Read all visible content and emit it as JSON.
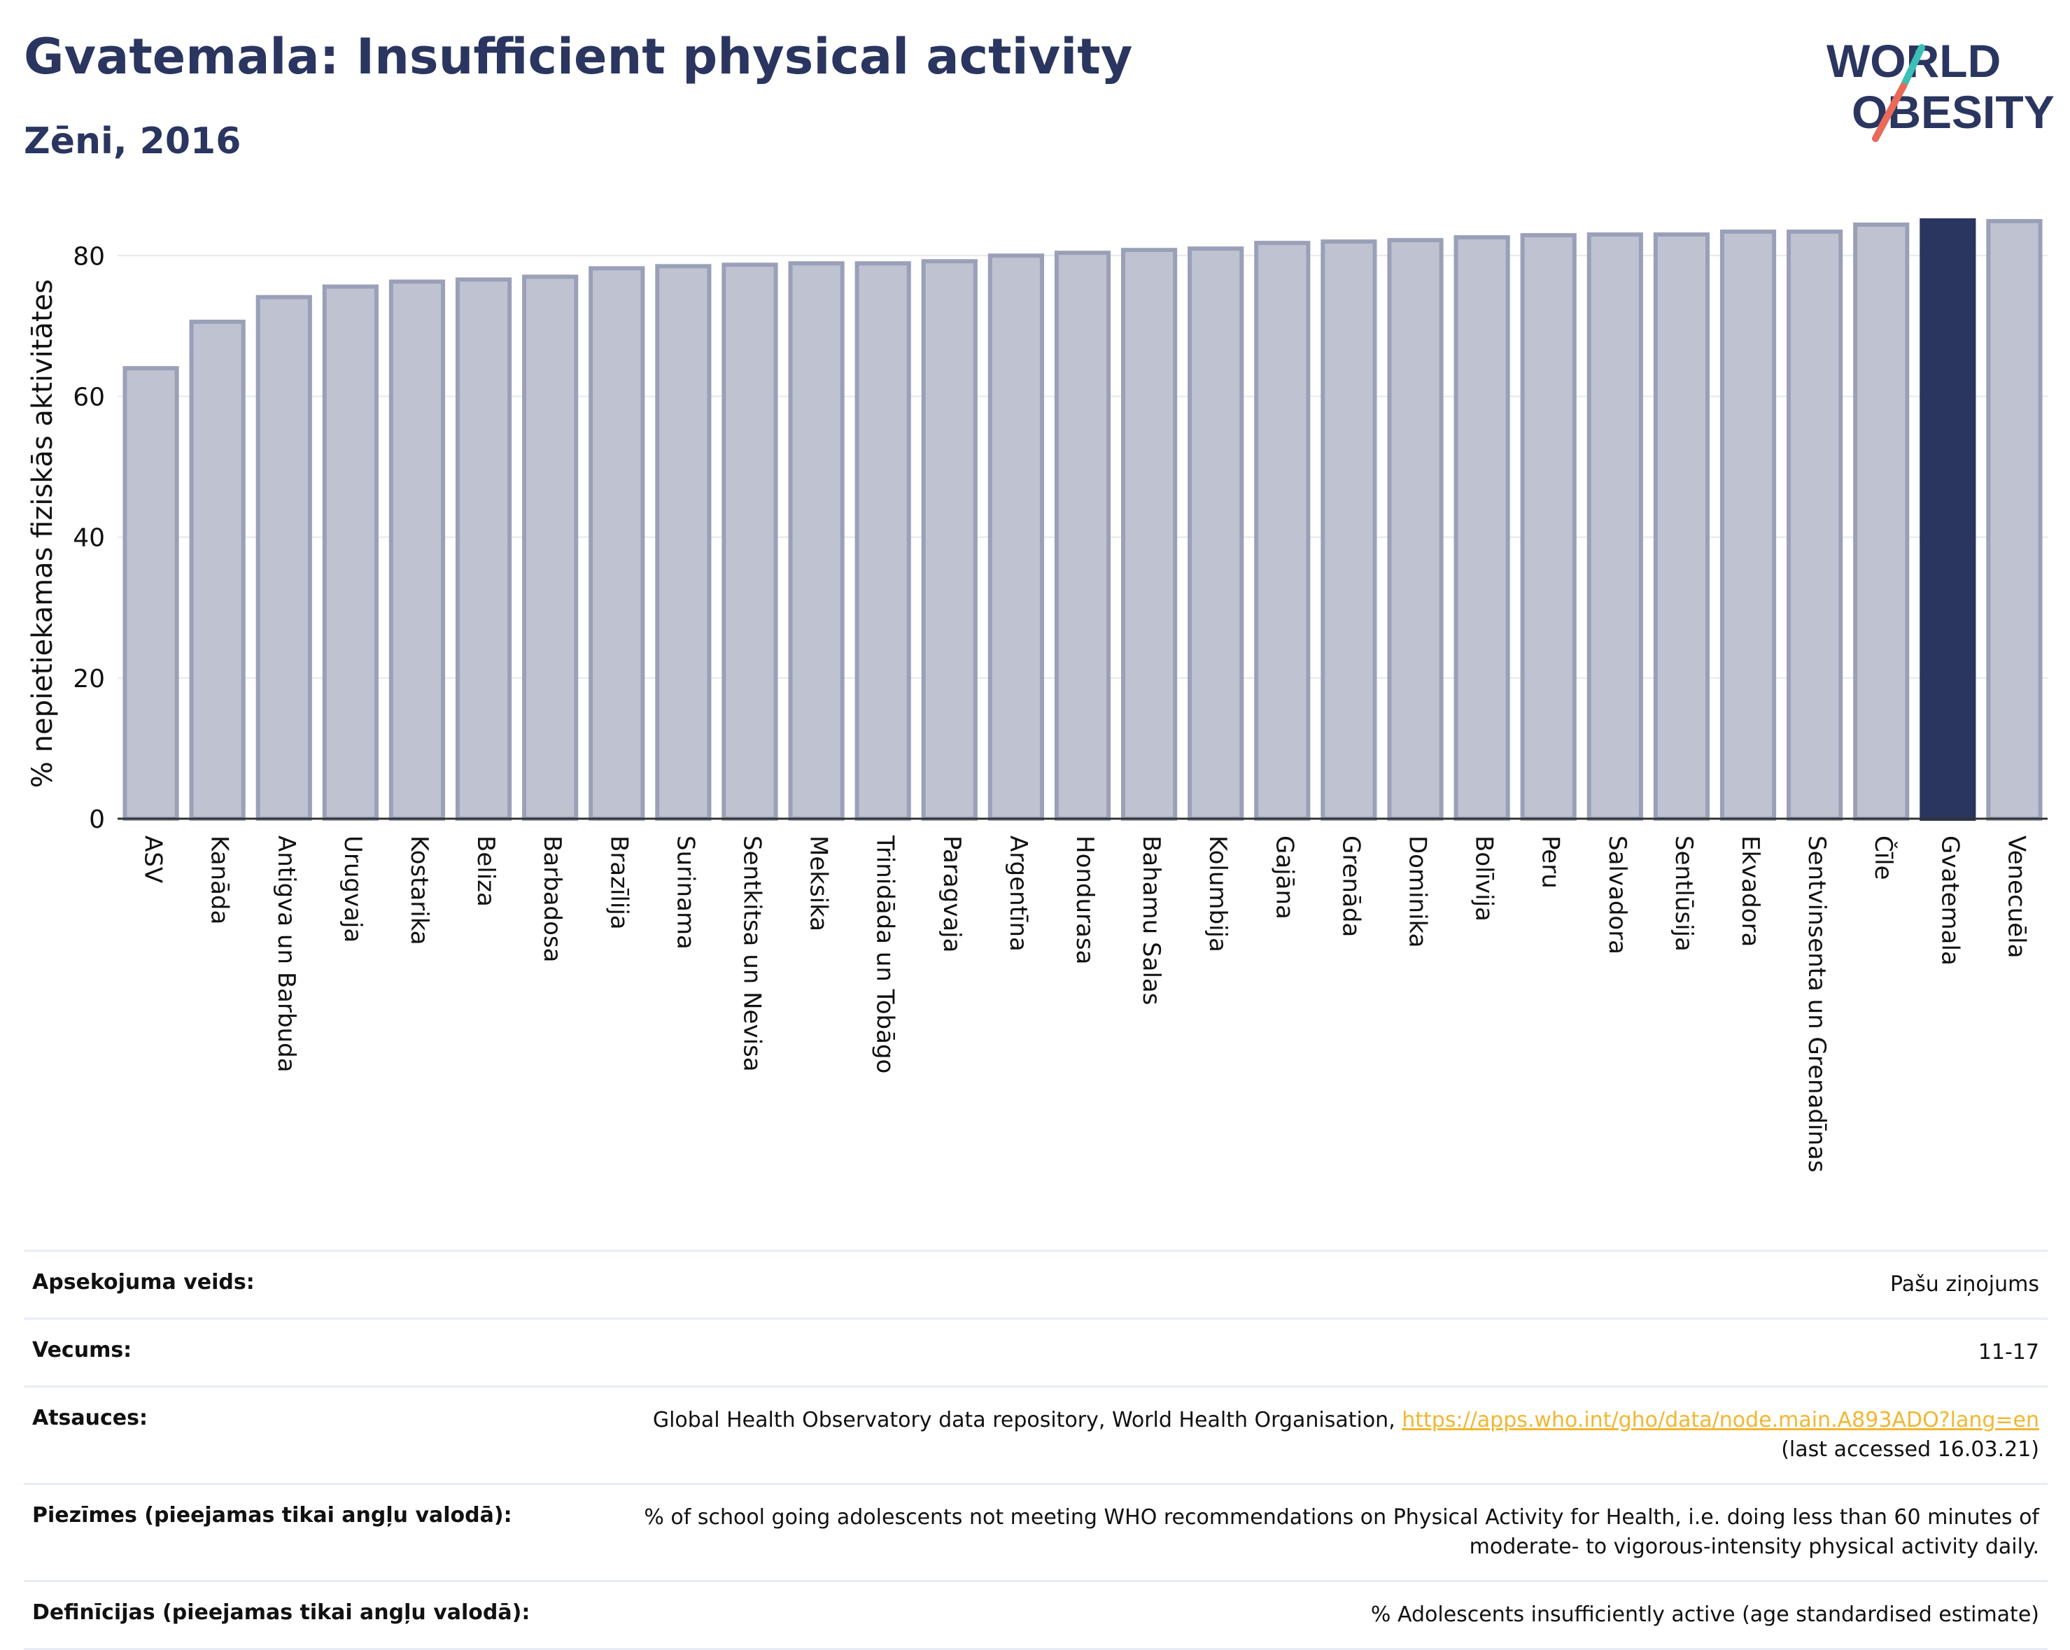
{
  "title": "Gvatemala: Insufficient physical activity",
  "subtitle": "Zēni, 2016",
  "logo": {
    "line1": "WORLD",
    "line2": "OBESITY",
    "colors": {
      "text": "#2a3560",
      "slash_teal": "#3bbfb6",
      "slash_red": "#e96a58"
    }
  },
  "colors": {
    "bar": "#bfc3d1",
    "bar_border": "#9aa0b8",
    "highlight": "#2a3560",
    "grid": "#e6e8ee"
  },
  "chart_data": {
    "type": "bar",
    "ylabel": "% nepietiekamas fiziskās aktivitātes",
    "ylim": [
      0,
      85
    ],
    "yticks": [
      0,
      20,
      40,
      60,
      80
    ],
    "grid": true,
    "highlight": "Gvatemala",
    "categories": [
      "ASV",
      "Kanāda",
      "Antigva un Barbuda",
      "Urugvaja",
      "Kostarika",
      "Beliza",
      "Barbadosa",
      "Brazīlija",
      "Surinama",
      "Sentkitsa un Nevisa",
      "Meksika",
      "Trinidāda un Tobāgo",
      "Paragvaja",
      "Argentīna",
      "Hondurasa",
      "Bahamu Salas",
      "Kolumbija",
      "Gajāna",
      "Grenāda",
      "Dominika",
      "Bolīvija",
      "Peru",
      "Salvadora",
      "Sentlūsija",
      "Ekvadora",
      "Sentvinsenta un Grenadīnas",
      "Čīle",
      "Gvatemala",
      "Venecuēla"
    ],
    "values": [
      64.0,
      70.6,
      74.1,
      75.6,
      76.3,
      76.6,
      77.0,
      78.2,
      78.5,
      78.7,
      78.9,
      78.9,
      79.2,
      80.0,
      80.4,
      80.8,
      81.0,
      81.8,
      82.0,
      82.2,
      82.6,
      82.9,
      83.0,
      83.0,
      83.4,
      83.4,
      84.4,
      85.0,
      84.9
    ]
  },
  "metadata": [
    {
      "label": "Apsekojuma veids:",
      "value": "Pašu ziņojums"
    },
    {
      "label": "Vecums:",
      "value": "11-17"
    },
    {
      "label": "Atsauces:",
      "value": "Global Health Observatory data repository, World Health Organisation, ",
      "link": "https://apps.who.int/gho/data/node.main.A893ADO?lang=en",
      "value2": "(last accessed 16.03.21)"
    },
    {
      "label": "Piezīmes (pieejamas tikai angļu valodā):",
      "value": "% of school going adolescents not meeting WHO recommendations on Physical Activity for Health, i.e. doing less than 60 minutes of moderate- to vigorous-intensity physical activity daily."
    },
    {
      "label": "Definīcijas (pieejamas tikai angļu valodā):",
      "value": "% Adolescents insufficiently active (age standardised estimate)"
    }
  ]
}
